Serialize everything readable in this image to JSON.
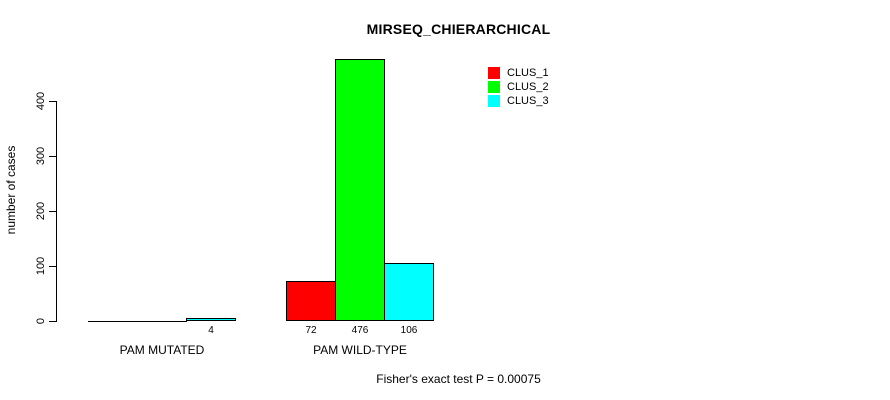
{
  "title": "MIRSEQ_CHIERARCHICAL",
  "ylabel": "number of cases",
  "footer": "Fisher's exact test P = 0.00075",
  "colors": {
    "background": "#FFFFFF",
    "axis": "#000000",
    "bar_border": "#000000"
  },
  "legend": {
    "position": "top-center-of-plot",
    "entries": [
      {
        "label": "CLUS_1",
        "color": "#FF0000"
      },
      {
        "label": "CLUS_2",
        "color": "#00FF00"
      },
      {
        "label": "CLUS_3",
        "color": "#00FFFF"
      }
    ]
  },
  "chart_data": {
    "type": "bar",
    "grouped": true,
    "categories": [
      "PAM MUTATED",
      "PAM WILD-TYPE"
    ],
    "series": [
      {
        "name": "CLUS_1",
        "color": "#FF0000",
        "values": [
          0,
          72
        ]
      },
      {
        "name": "CLUS_2",
        "color": "#00FF00",
        "values": [
          0,
          476
        ]
      },
      {
        "name": "CLUS_3",
        "color": "#00FFFF",
        "values": [
          4,
          106
        ]
      }
    ],
    "visible_value_labels": [
      "4",
      "72",
      "476",
      "106"
    ],
    "title": "MIRSEQ_CHIERARCHICAL",
    "xlabel": "",
    "ylabel": "number of cases",
    "ylim": [
      0,
      400
    ],
    "yticks": [
      0,
      100,
      200,
      300,
      400
    ],
    "grid": false,
    "legend_position": "upper-center",
    "annotation": "Fisher's exact test P = 0.00075"
  }
}
